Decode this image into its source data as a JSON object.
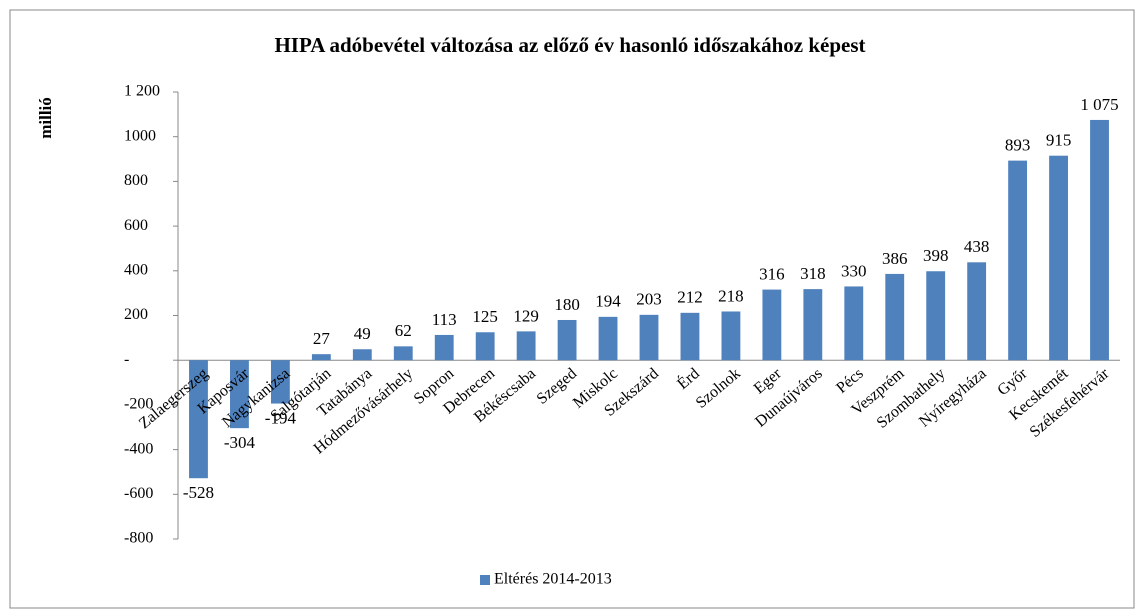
{
  "chart_data": {
    "type": "bar",
    "title": "HIPA adóbevétel változása az előző év hasonló időszakához képest",
    "y_label": "millió",
    "categories": [
      "Zalaegerszeg",
      "Kaposvár",
      "Nagykanizsa",
      "Salgótarján",
      "Tatabánya",
      "Hódmezővásárhely",
      "Sopron",
      "Debrecen",
      "Békéscsaba",
      "Szeged",
      "Miskolc",
      "Szekszárd",
      "Érd",
      "Szolnok",
      "Eger",
      "Dunaújváros",
      "Pécs",
      "Veszprém",
      "Szombathely",
      "Nyíregyháza",
      "Győr",
      "Kecskemét",
      "Székesfehérvár"
    ],
    "series": [
      {
        "name": "Eltérés 2014-2013",
        "color": "#4f81bd",
        "values": [
          -528,
          -304,
          -194,
          27,
          49,
          62,
          113,
          125,
          129,
          180,
          194,
          203,
          212,
          218,
          316,
          318,
          330,
          386,
          398,
          438,
          893,
          915,
          1075
        ],
        "value_labels": [
          "-528",
          "-304",
          "-194",
          "27",
          "49",
          "62",
          "113",
          "125",
          "129",
          "180",
          "194",
          "203",
          "212",
          "218",
          "316",
          "318",
          "330",
          "386",
          "398",
          "438",
          "893",
          "915",
          "1 075"
        ]
      }
    ],
    "ylim": [
      -800,
      1200
    ],
    "yticks": [
      {
        "value": -800,
        "label": "-800"
      },
      {
        "value": -600,
        "label": "-600"
      },
      {
        "value": -400,
        "label": "-400"
      },
      {
        "value": -200,
        "label": "-200"
      },
      {
        "value": 0,
        "label": "-"
      },
      200,
      400,
      600,
      800,
      1000,
      {
        "value": 1200,
        "label": "1 200"
      }
    ],
    "legend": "bottom"
  }
}
